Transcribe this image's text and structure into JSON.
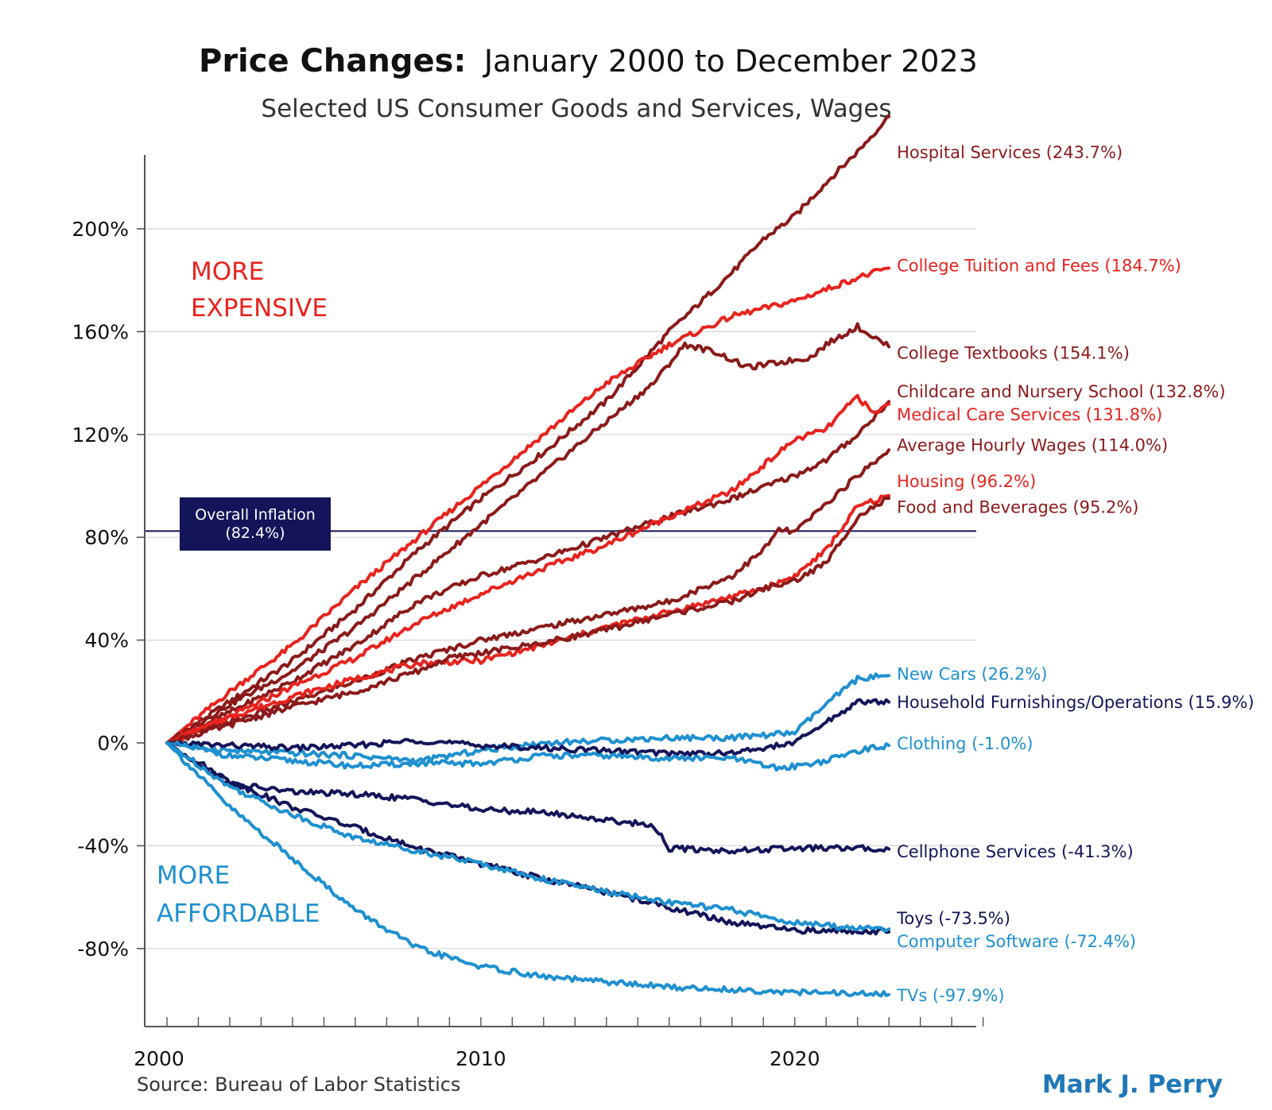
{
  "chart_data": {
    "type": "line",
    "title": "Price Changes:",
    "title_detail": "January 2000 to December 2023",
    "subtitle": "Selected US Consumer Goods and Services, Wages",
    "xlim": [
      2000,
      2026
    ],
    "ylim": [
      -110,
      245
    ],
    "yticks": [
      -80,
      -40,
      0,
      40,
      80,
      120,
      160,
      200
    ],
    "ytick_labels": [
      "-80%",
      "-40%",
      "0%",
      "40%",
      "80%",
      "120%",
      "160%",
      "200%"
    ],
    "xtick_labels": [
      {
        "x": 2000,
        "label": "2000"
      },
      {
        "x": 2010,
        "label": "2010"
      },
      {
        "x": 2020,
        "label": "2020"
      }
    ],
    "grid": true,
    "region_labels": {
      "expensive": [
        "MORE",
        "EXPENSIVE"
      ],
      "affordable": [
        "MORE",
        "AFFORDABLE"
      ]
    },
    "reference_line": {
      "value": 82.4,
      "label_line1": "Overall Inflation",
      "label_line2": "(82.4%)"
    },
    "source": "Source: Bureau of Labor Statistics",
    "author": "Mark J. Perry",
    "colors": {
      "dark_red": "#8b1a1a",
      "red": "#e8231e",
      "dark_blue": "#14145a",
      "light_blue": "#1e90d0",
      "grid": "#d6d6d6",
      "axis": "#555555"
    },
    "series": [
      {
        "name": "Hospital Services (243.7%)",
        "color": "#8b1a1a",
        "label_y": 230,
        "x": [
          2000,
          2002,
          2004,
          2006,
          2008,
          2010,
          2012,
          2014,
          2016,
          2018,
          2019,
          2020,
          2021,
          2022,
          2023
        ],
        "values": [
          0,
          16,
          32,
          52,
          75,
          95,
          113,
          133,
          160,
          183,
          196,
          205,
          218,
          230,
          243.7
        ]
      },
      {
        "name": "College Tuition and Fees (184.7%)",
        "color": "#e8231e",
        "label_y": 186,
        "x": [
          2000,
          2002,
          2004,
          2006,
          2008,
          2010,
          2012,
          2014,
          2016,
          2018,
          2020,
          2022,
          2023
        ],
        "values": [
          0,
          20,
          38,
          60,
          80,
          100,
          120,
          140,
          155,
          166,
          172,
          181,
          184.7
        ]
      },
      {
        "name": "College Textbooks (154.1%)",
        "color": "#8b1a1a",
        "label_y": 152,
        "x": [
          2000,
          2002,
          2004,
          2006,
          2008,
          2010,
          2012,
          2014,
          2015.5,
          2016.5,
          2017.5,
          2018.5,
          2019.5,
          2020.5,
          2021,
          2022,
          2022.5,
          2023
        ],
        "values": [
          0,
          15,
          28,
          45,
          65,
          85,
          105,
          125,
          140,
          155,
          152,
          146,
          148,
          150,
          155,
          162,
          158,
          154.1
        ]
      },
      {
        "name": "Childcare and Nursery School (132.8%)",
        "color": "#8b1a1a",
        "label_y": 137,
        "x": [
          2000,
          2002,
          2004,
          2006,
          2008,
          2010,
          2012,
          2014,
          2016,
          2018,
          2020,
          2021,
          2022,
          2023
        ],
        "values": [
          0,
          12,
          24,
          38,
          55,
          65,
          72,
          80,
          88,
          95,
          104,
          110,
          120,
          132.8
        ]
      },
      {
        "name": "Medical Care Services (131.8%)",
        "color": "#e8231e",
        "label_y": 128,
        "x": [
          2000,
          2002,
          2004,
          2006,
          2008,
          2010,
          2012,
          2014,
          2016,
          2018,
          2019,
          2020,
          2021,
          2022,
          2022.5,
          2023
        ],
        "values": [
          0,
          10,
          22,
          33,
          47,
          58,
          68,
          77,
          88,
          98,
          108,
          118,
          122,
          135,
          128,
          131.8
        ]
      },
      {
        "name": "Average Hourly Wages (114.0%)",
        "color": "#8b1a1a",
        "label_y": 116,
        "x": [
          2000,
          2002,
          2004,
          2006,
          2008,
          2010,
          2012,
          2014,
          2016,
          2018,
          2019,
          2019.5,
          2020,
          2021,
          2022,
          2023
        ],
        "values": [
          0,
          8,
          16,
          24,
          33,
          40,
          45,
          50,
          55,
          65,
          75,
          83,
          82,
          93,
          104,
          114
        ]
      },
      {
        "name": "Housing (96.2%)",
        "color": "#e8231e",
        "label_y": 102,
        "x": [
          2000,
          2002,
          2004,
          2006,
          2008,
          2010,
          2012,
          2014,
          2016,
          2018,
          2019,
          2020,
          2021,
          2022,
          2023
        ],
        "values": [
          0,
          10,
          18,
          25,
          31,
          32,
          38,
          45,
          51,
          57,
          60,
          65,
          75,
          92,
          96.2
        ]
      },
      {
        "name": "Food and Beverages (95.2%)",
        "color": "#8b1a1a",
        "label_y": 92,
        "x": [
          2000,
          2002,
          2004,
          2006,
          2008,
          2009,
          2010,
          2012,
          2014,
          2016,
          2018,
          2019,
          2020,
          2021,
          2022,
          2023
        ],
        "values": [
          0,
          7,
          14,
          20,
          28,
          33,
          35,
          39,
          44,
          50,
          55,
          60,
          63,
          70,
          88,
          95.2
        ]
      },
      {
        "name": "New Cars (26.2%)",
        "color": "#1e90d0",
        "label_y": 27,
        "x": [
          2000,
          2002,
          2004,
          2006,
          2008,
          2010,
          2012,
          2014,
          2016,
          2018,
          2020,
          2021,
          2022,
          2023
        ],
        "values": [
          0,
          -3,
          -4,
          -5,
          -7,
          -3,
          0,
          1,
          2,
          2,
          4,
          15,
          25,
          26.2
        ]
      },
      {
        "name": "Household Furnishings/Operations (15.9%)",
        "color": "#14145a",
        "label_y": 16,
        "x": [
          2000,
          2002,
          2004,
          2006,
          2008,
          2010,
          2012,
          2014,
          2016,
          2018,
          2020,
          2021,
          2022,
          2023
        ],
        "values": [
          0,
          -1,
          -2,
          -1,
          1,
          -1,
          -2,
          -3,
          -4,
          -4,
          0,
          8,
          16,
          15.9
        ]
      },
      {
        "name": "Clothing (-1.0%)",
        "color": "#1e90d0",
        "label_y": 0,
        "x": [
          2000,
          2002,
          2004,
          2006,
          2008,
          2010,
          2012,
          2014,
          2016,
          2018,
          2019.5,
          2020,
          2021,
          2022,
          2023
        ],
        "values": [
          0,
          -5,
          -7,
          -9,
          -8,
          -8,
          -5,
          -5,
          -6,
          -6,
          -10,
          -9,
          -7,
          -3,
          -1
        ]
      },
      {
        "name": "Cellphone Services (-41.3%)",
        "color": "#14145a",
        "label_y": -42,
        "x": [
          2000,
          2001,
          2002,
          2004,
          2006,
          2008,
          2010,
          2012,
          2014,
          2015.5,
          2016,
          2018,
          2020,
          2022,
          2023
        ],
        "values": [
          0,
          -8,
          -16,
          -19,
          -20,
          -22,
          -26,
          -27,
          -30,
          -32,
          -41,
          -42,
          -41,
          -41,
          -41.3
        ]
      },
      {
        "name": "Toys (-73.5%)",
        "color": "#14145a",
        "label_y": -68,
        "x": [
          2000,
          2002,
          2004,
          2006,
          2008,
          2010,
          2012,
          2014,
          2016,
          2018,
          2020,
          2022,
          2023
        ],
        "values": [
          0,
          -15,
          -25,
          -33,
          -41,
          -47,
          -53,
          -58,
          -64,
          -70,
          -73,
          -73,
          -73.5
        ]
      },
      {
        "name": "Computer Software (-72.4%)",
        "color": "#1e90d0",
        "label_y": -77,
        "x": [
          2000,
          2002,
          2004,
          2006,
          2008,
          2010,
          2012,
          2014,
          2016,
          2018,
          2020,
          2022,
          2023
        ],
        "values": [
          0,
          -17,
          -28,
          -37,
          -42,
          -47,
          -53,
          -58,
          -62,
          -65,
          -70,
          -72,
          -72.4
        ]
      },
      {
        "name": "TVs (-97.9%)",
        "color": "#1e90d0",
        "label_y": -98,
        "x": [
          2000,
          2002,
          2004,
          2006,
          2008,
          2010,
          2012,
          2014,
          2016,
          2018,
          2020,
          2022,
          2023
        ],
        "values": [
          0,
          -25,
          -45,
          -65,
          -80,
          -87,
          -91,
          -93,
          -95,
          -96,
          -97,
          -97.5,
          -97.9
        ]
      }
    ]
  }
}
